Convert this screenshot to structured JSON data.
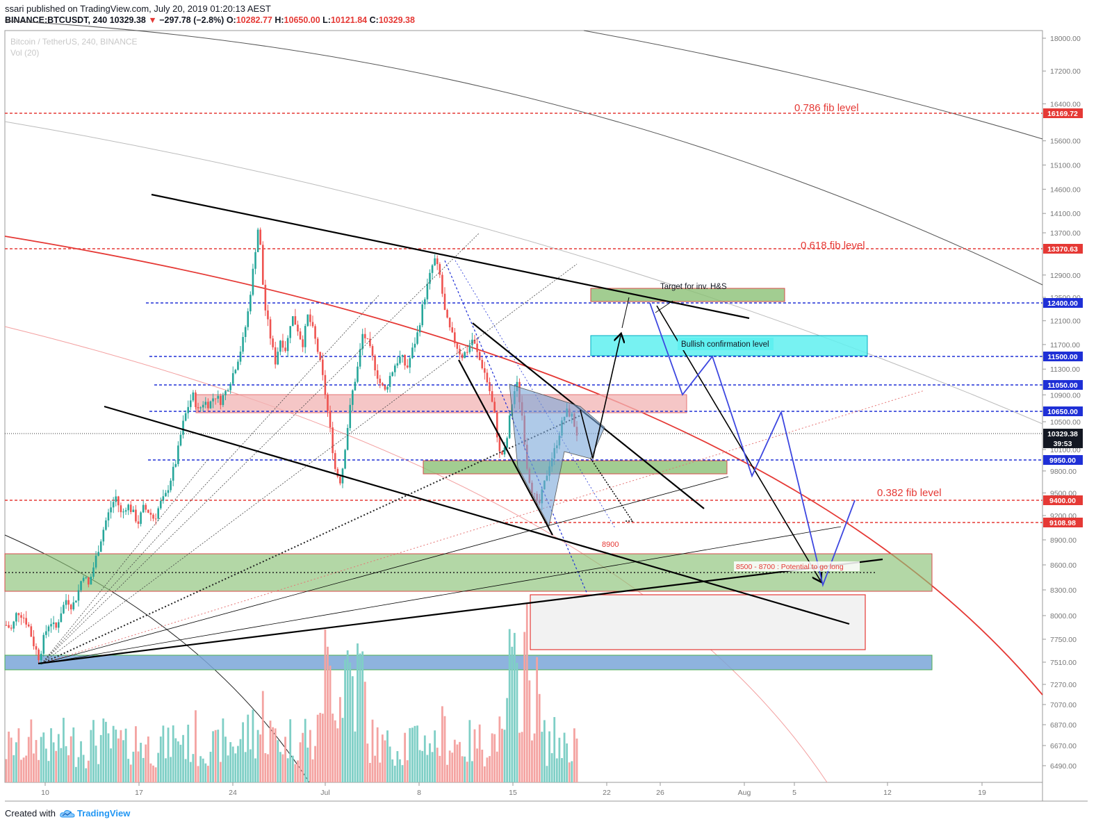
{
  "header": {
    "publisher": "ssari published on TradingView.com, July 20, 2019 01:20:13 AEST",
    "symbol": "BINANCE:BTCUSDT, 240",
    "last": "10329.38",
    "change": "−297.78 (−2.8%)",
    "open_label": "O:",
    "open": "10282.77",
    "high_label": "H:",
    "high": "10650.00",
    "low_label": "L:",
    "low": "10121.84",
    "close_label": "C:",
    "close": "10329.38"
  },
  "watermark": {
    "title": "Bitcoin / TetherUS, 240, BINANCE",
    "volume": "Vol (20)"
  },
  "footer": {
    "created_with": "Created with",
    "brand": "TradingView"
  },
  "colors": {
    "up": "#26a69a",
    "down": "#ef5350",
    "fib": "#e53935",
    "level": "#1e2fd6",
    "bull": "#00bcd4"
  },
  "chart_data": {
    "type": "candlestick",
    "title": "Bitcoin / TetherUS, 240, BINANCE",
    "xlabel": "",
    "ylabel": "",
    "ylim": [
      6300,
      18300
    ],
    "y_ticks": [
      18000,
      17200,
      16400,
      15600,
      15100,
      14600,
      14100,
      13700,
      12900,
      12500,
      12100,
      11700,
      11300,
      10900,
      10500,
      10100,
      9800,
      9500,
      9200,
      8900,
      8600,
      8300,
      8000,
      7750,
      7510,
      7270,
      7070,
      6870,
      6670,
      6490
    ],
    "x_ticks": [
      "10",
      "17",
      "24",
      "Jul",
      "8",
      "15",
      "22",
      "26",
      "Aug",
      "5",
      "12",
      "19"
    ],
    "price_badges": [
      {
        "value": "16169.72",
        "price": 16169.72,
        "color": "#e53935"
      },
      {
        "value": "13370.63",
        "price": 13370.63,
        "color": "#e53935"
      },
      {
        "value": "12400.00",
        "price": 12400,
        "color": "#1e2fd6"
      },
      {
        "value": "11500.00",
        "price": 11500,
        "color": "#1e2fd6"
      },
      {
        "value": "11050.00",
        "price": 11050,
        "color": "#1e2fd6"
      },
      {
        "value": "10650.00",
        "price": 10650,
        "color": "#1e2fd6"
      },
      {
        "value": "10329.38",
        "price": 10329.38,
        "color": "#131722"
      },
      {
        "value": "39:53",
        "price": 10190,
        "color": "#131722"
      },
      {
        "value": "9950.00",
        "price": 9950,
        "color": "#1e2fd6"
      },
      {
        "value": "9400.00",
        "price": 9400,
        "color": "#e53935"
      },
      {
        "value": "9108.98",
        "price": 9108.98,
        "color": "#e53935"
      }
    ],
    "fib_levels": [
      {
        "label": "0.786 fib level",
        "price": 16169.72
      },
      {
        "label": "0.618 fib level",
        "price": 13370.63
      },
      {
        "label": "0.382 fib level",
        "price": 9400
      }
    ],
    "annotations": [
      {
        "text": "Target for inv. H&S"
      },
      {
        "text": "Bullish confirmation level"
      },
      {
        "text": "8900"
      },
      {
        "text": "8500 - 8700 : Potential to go long"
      }
    ],
    "price_path": [
      7900,
      7850,
      8050,
      8000,
      7900,
      7700,
      7550,
      7800,
      7950,
      7850,
      8050,
      8200,
      8100,
      8250,
      8500,
      8350,
      8600,
      8850,
      9100,
      9300,
      9450,
      9200,
      9350,
      9250,
      9100,
      9300,
      9250,
      9150,
      9350,
      9450,
      9700,
      9950,
      10400,
      10700,
      10900,
      10650,
      10800,
      10750,
      10900,
      10800,
      10950,
      11150,
      11400,
      11700,
      12200,
      13000,
      13900,
      12400,
      11900,
      11400,
      11800,
      11600,
      12200,
      12000,
      11700,
      12200,
      11900,
      11500,
      11000,
      10400,
      9800,
      9650,
      10300,
      10900,
      11300,
      11900,
      11700,
      11400,
      11100,
      10950,
      11200,
      11400,
      11500,
      11300,
      11600,
      11900,
      12400,
      12800,
      13200,
      12900,
      12200,
      11900,
      11700,
      11500,
      11600,
      11800,
      11500,
      11300,
      11000,
      10600,
      10000,
      10100,
      10700,
      11100,
      10600,
      9800,
      9500,
      9300,
      9600,
      9900,
      10100,
      10400,
      10650,
      10600,
      10329.38
    ]
  }
}
